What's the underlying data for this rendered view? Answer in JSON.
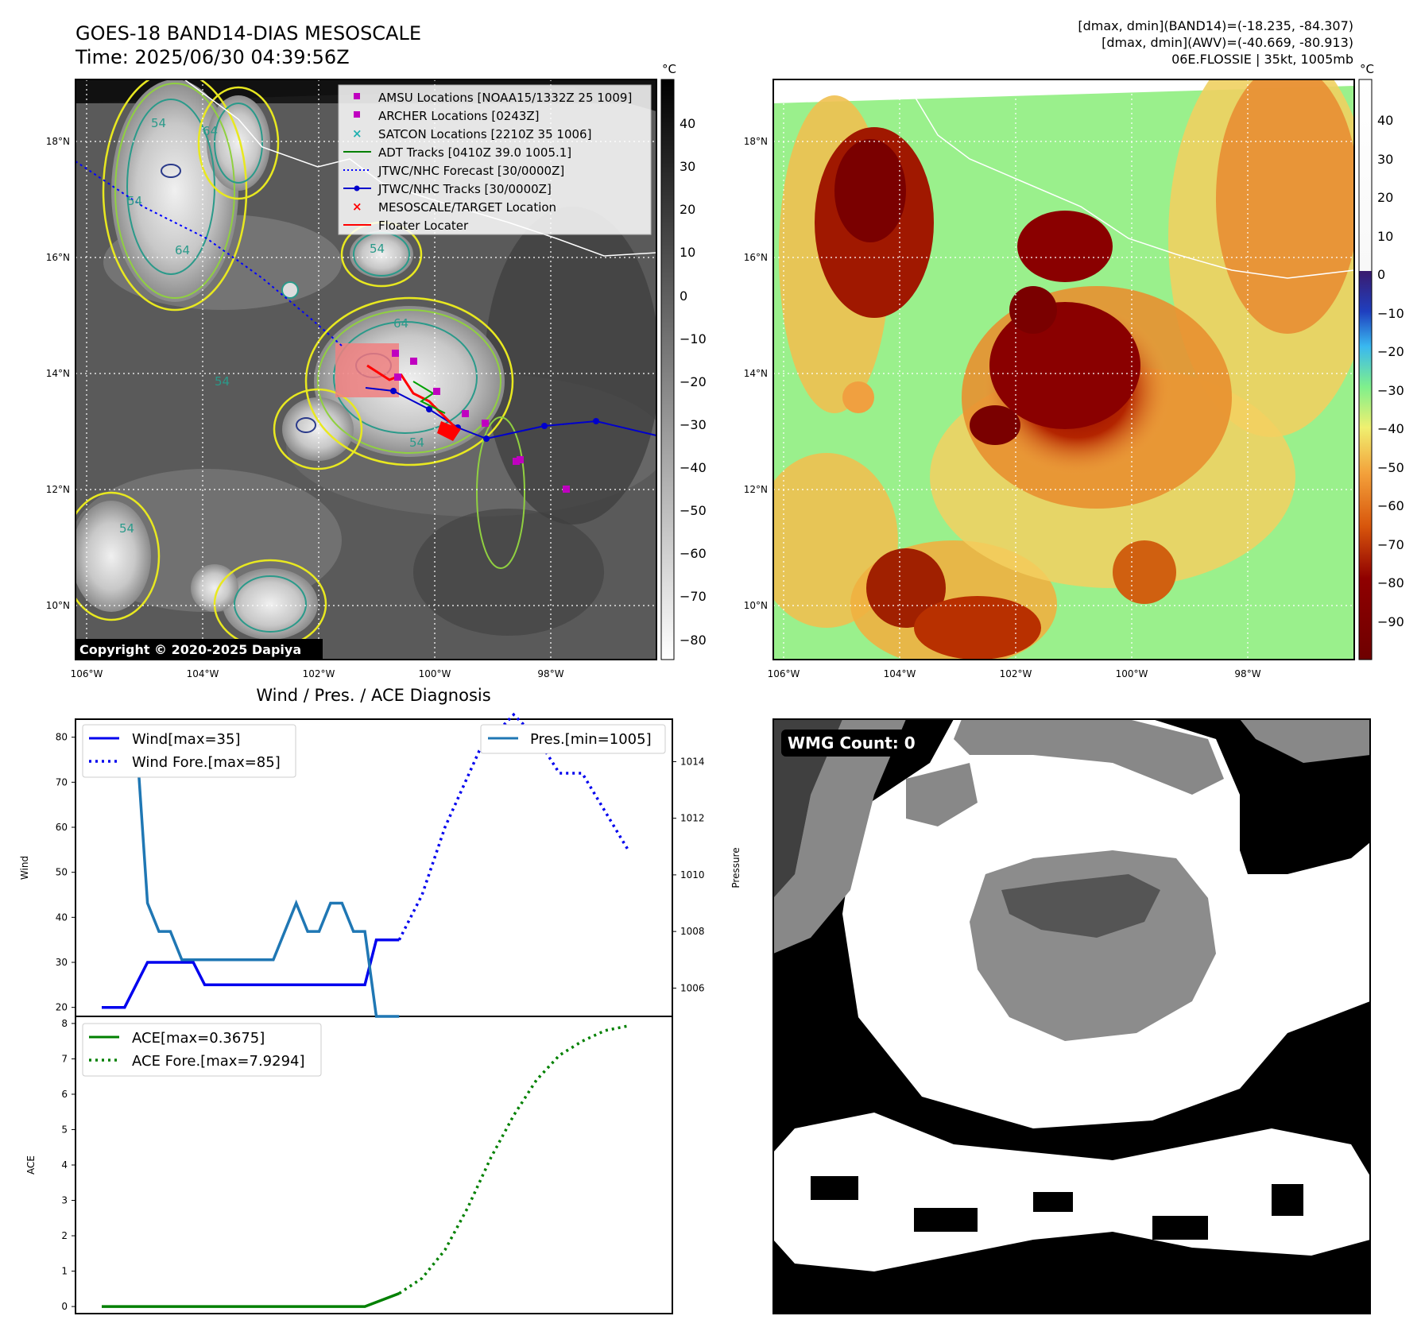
{
  "header": {
    "title_line1": "GOES-18 BAND14-DIAS MESOSCALE",
    "title_line2": "Time: 2025/06/30 04:39:56Z",
    "right_line1": "[dmax, dmin](BAND14)=(-18.235, -84.307)",
    "right_line2": "[dmax, dmin](AWV)=(-40.669, -80.913)",
    "right_line3": "06E.FLOSSIE | 35kt, 1005mb"
  },
  "map": {
    "x_ticks": [
      "106°W",
      "104°W",
      "102°W",
      "100°W",
      "98°W"
    ],
    "y_ticks": [
      "18°N",
      "16°N",
      "14°N",
      "12°N",
      "10°N"
    ],
    "colorbar_unit": "°C",
    "colorbar_left_ticks": [
      "40",
      "30",
      "20",
      "10",
      "0",
      "−10",
      "−20",
      "−30",
      "−40",
      "−50",
      "−60",
      "−70",
      "−80"
    ],
    "colorbar_right_ticks": [
      "40",
      "30",
      "20",
      "10",
      "0",
      "−10",
      "−20",
      "−30",
      "−40",
      "−50",
      "−60",
      "−70",
      "−80",
      "−90"
    ],
    "copyright": "Copyright © 2020-2025 Dapiya",
    "contour_labels": [
      "54",
      "64",
      "54",
      "64",
      "54",
      "54",
      "54",
      "54",
      "64"
    ],
    "legend": [
      {
        "label": "AMSU Locations [NOAA15/1332Z 25 1009]",
        "color": "#c000c0",
        "marker": "square"
      },
      {
        "label": "ARCHER Locations [0243Z]",
        "color": "#c000c0",
        "marker": "square"
      },
      {
        "label": "SATCON Locations [2210Z 35 1006]",
        "color": "#20b0b0",
        "marker": "x"
      },
      {
        "label": "ADT Tracks [0410Z 39.0 1005.1]",
        "color": "#008000",
        "marker": "line"
      },
      {
        "label": "JTWC/NHC Forecast [30/0000Z]",
        "color": "#0000ff",
        "marker": "dotted"
      },
      {
        "label": "JTWC/NHC Tracks [30/0000Z]",
        "color": "#0000cc",
        "marker": "line-dot"
      },
      {
        "label": "MESOSCALE/TARGET Location",
        "color": "#ff0000",
        "marker": "x"
      },
      {
        "label": "Floater Locater",
        "color": "#ff0000",
        "marker": "line"
      }
    ]
  },
  "diagnosis": {
    "title": "Wind / Pres. / ACE Diagnosis",
    "wind_ylabel": "Wind",
    "pres_ylabel": "Pressure",
    "ace_ylabel": "ACE",
    "legend_wind": "Wind[max=35]",
    "legend_wind_fore": "Wind Fore.[max=85]",
    "legend_pres": "Pres.[min=1005]",
    "legend_ace": "ACE[max=0.3675]",
    "legend_ace_fore": "ACE Fore.[max=7.9294]"
  },
  "wmg": {
    "label": "WMG Count: 0"
  },
  "colors": {
    "wind": "#0000ee",
    "pressure": "#1f77b4",
    "ace": "#008000"
  },
  "chart_data": [
    {
      "type": "line",
      "title": "Wind / Pres. / ACE Diagnosis",
      "ylabel": "Wind",
      "ylim": [
        18,
        84
      ],
      "yticks": [
        20,
        30,
        40,
        50,
        60,
        70,
        80
      ],
      "series": [
        {
          "name": "Wind[max=35]",
          "style": "solid",
          "x": [
            0,
            2,
            4,
            8,
            9,
            23,
            24,
            26
          ],
          "values": [
            20,
            20,
            30,
            30,
            25,
            25,
            35,
            35
          ]
        },
        {
          "name": "Wind Fore.[max=85]",
          "style": "dotted",
          "x": [
            26,
            28,
            30,
            33,
            36,
            38,
            40,
            42,
            46
          ],
          "values": [
            35,
            45,
            60,
            77,
            85,
            80,
            72,
            72,
            55
          ]
        }
      ]
    },
    {
      "type": "line",
      "ylabel": "Pressure",
      "ylim": [
        1005,
        1015.5
      ],
      "yticks": [
        1006,
        1008,
        1010,
        1012,
        1014
      ],
      "series": [
        {
          "name": "Pres.[min=1005]",
          "style": "solid",
          "x": [
            0,
            3,
            4,
            5,
            6,
            7,
            15,
            17,
            18,
            19,
            20,
            21,
            22,
            23,
            24,
            26
          ],
          "values": [
            1015,
            1015,
            1009,
            1008,
            1008,
            1007,
            1007,
            1009,
            1008,
            1008,
            1009,
            1009,
            1008,
            1008,
            1005,
            1005
          ]
        }
      ]
    },
    {
      "type": "line",
      "ylabel": "ACE",
      "ylim": [
        -0.2,
        8.2
      ],
      "yticks": [
        0,
        1,
        2,
        3,
        4,
        5,
        6,
        7,
        8
      ],
      "series": [
        {
          "name": "ACE[max=0.3675]",
          "style": "solid",
          "x": [
            0,
            23,
            26
          ],
          "values": [
            0,
            0,
            0.37
          ]
        },
        {
          "name": "ACE Fore.[max=7.9294]",
          "style": "dotted",
          "x": [
            26,
            28,
            30,
            32,
            34,
            36,
            38,
            40,
            42,
            44,
            46
          ],
          "values": [
            0.37,
            0.8,
            1.6,
            2.8,
            4.2,
            5.4,
            6.4,
            7.1,
            7.5,
            7.8,
            7.93
          ]
        }
      ]
    }
  ]
}
